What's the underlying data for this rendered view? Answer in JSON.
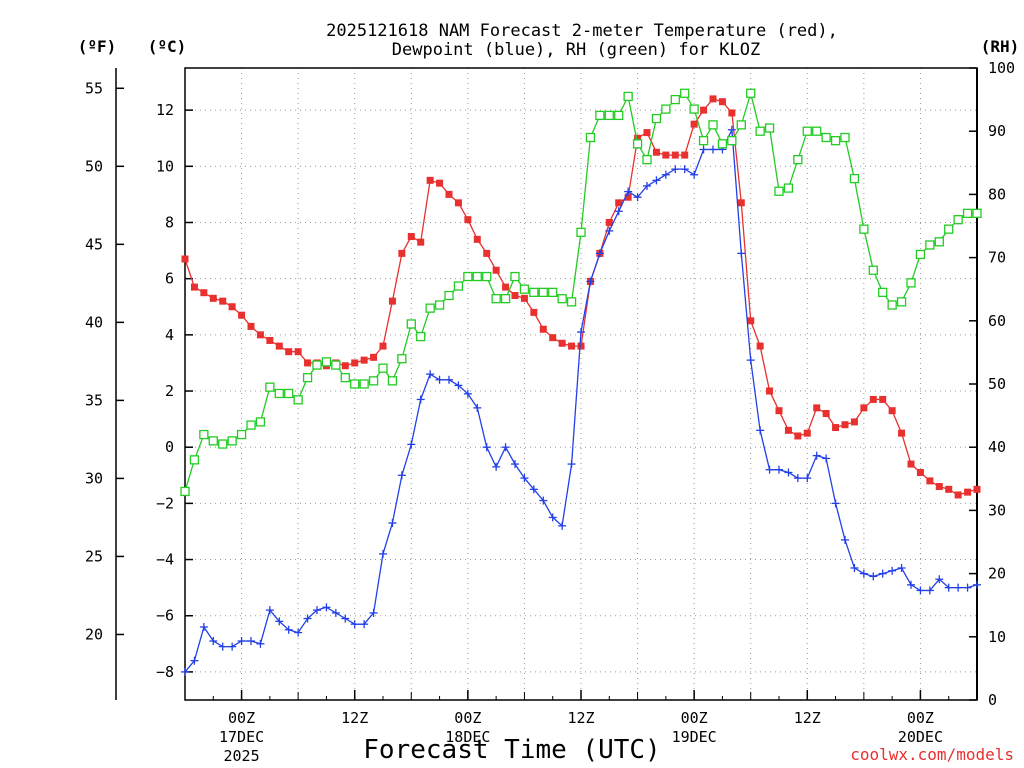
{
  "chart_data": {
    "type": "line",
    "title": "2025121618 NAM Forecast 2-meter Temperature (red),",
    "title_line2": "Dewpoint (blue), RH (green) for KLOZ",
    "xlabel": "Forecast Time (UTC)",
    "credit": "coolwx.com/models",
    "units": {
      "fahrenheit": "(ºF)",
      "celsius": "(ºC)",
      "rh": "(RH)"
    },
    "x_units": "hours since 2025-12-16 18Z",
    "xlim": [
      0,
      84
    ],
    "ylim_celsius": [
      -9,
      13.5
    ],
    "ylim_rh": [
      0,
      100
    ],
    "celsius_ticks": [
      -8,
      -6,
      -4,
      -2,
      0,
      2,
      4,
      6,
      8,
      10,
      12
    ],
    "celsius_tick_labels": [
      "−8",
      "−6",
      "−4",
      "−2",
      "0",
      "2",
      "4",
      "6",
      "8",
      "10",
      "12"
    ],
    "fahrenheit_ticks": [
      20,
      25,
      30,
      35,
      40,
      45,
      50,
      55
    ],
    "fahrenheit_tick_labels": [
      "20",
      "25",
      "30",
      "35",
      "40",
      "45",
      "50",
      "55"
    ],
    "rh_ticks": [
      0,
      10,
      20,
      30,
      40,
      50,
      60,
      70,
      80,
      90,
      100
    ],
    "rh_tick_labels": [
      "0",
      "10",
      "20",
      "30",
      "40",
      "50",
      "60",
      "70",
      "80",
      "90",
      "100"
    ],
    "x_ticks": [
      {
        "hour": 6,
        "label": "00Z",
        "sub1": "17DEC",
        "sub2": "2025"
      },
      {
        "hour": 18,
        "label": "12Z",
        "sub1": "",
        "sub2": ""
      },
      {
        "hour": 30,
        "label": "00Z",
        "sub1": "18DEC",
        "sub2": ""
      },
      {
        "hour": 42,
        "label": "12Z",
        "sub1": "",
        "sub2": ""
      },
      {
        "hour": 54,
        "label": "00Z",
        "sub1": "19DEC",
        "sub2": ""
      },
      {
        "hour": 66,
        "label": "12Z",
        "sub1": "",
        "sub2": ""
      },
      {
        "hour": 78,
        "label": "00Z",
        "sub1": "20DEC",
        "sub2": ""
      }
    ],
    "series": [
      {
        "name": "Temperature",
        "color": "#e8302f",
        "marker": "filled-square",
        "axis": "celsius",
        "points": [
          [
            0,
            6.7
          ],
          [
            1,
            5.7
          ],
          [
            2,
            5.5
          ],
          [
            3,
            5.3
          ],
          [
            4,
            5.2
          ],
          [
            5,
            5.0
          ],
          [
            6,
            4.7
          ],
          [
            7,
            4.3
          ],
          [
            8,
            4.0
          ],
          [
            9,
            3.8
          ],
          [
            10,
            3.6
          ],
          [
            11,
            3.4
          ],
          [
            12,
            3.4
          ],
          [
            13,
            3.0
          ],
          [
            14,
            3.0
          ],
          [
            15,
            2.9
          ],
          [
            16,
            3.0
          ],
          [
            17,
            2.9
          ],
          [
            18,
            3.0
          ],
          [
            19,
            3.1
          ],
          [
            20,
            3.2
          ],
          [
            21,
            3.6
          ],
          [
            22,
            5.2
          ],
          [
            23,
            6.9
          ],
          [
            24,
            7.5
          ],
          [
            25,
            7.3
          ],
          [
            26,
            9.5
          ],
          [
            27,
            9.4
          ],
          [
            28,
            9.0
          ],
          [
            29,
            8.7
          ],
          [
            30,
            8.1
          ],
          [
            31,
            7.4
          ],
          [
            32,
            6.9
          ],
          [
            33,
            6.3
          ],
          [
            34,
            5.7
          ],
          [
            35,
            5.4
          ],
          [
            36,
            5.3
          ],
          [
            37,
            4.8
          ],
          [
            38,
            4.2
          ],
          [
            39,
            3.9
          ],
          [
            40,
            3.7
          ],
          [
            41,
            3.6
          ],
          [
            42,
            3.6
          ],
          [
            43,
            5.9
          ],
          [
            44,
            6.9
          ],
          [
            45,
            8.0
          ],
          [
            46,
            8.7
          ],
          [
            47,
            8.9
          ],
          [
            48,
            11.0
          ],
          [
            49,
            11.2
          ],
          [
            50,
            10.5
          ],
          [
            51,
            10.4
          ],
          [
            52,
            10.4
          ],
          [
            53,
            10.4
          ],
          [
            54,
            11.5
          ],
          [
            55,
            12.0
          ],
          [
            56,
            12.4
          ],
          [
            57,
            12.3
          ],
          [
            58,
            11.9
          ],
          [
            59,
            8.7
          ],
          [
            60,
            4.5
          ],
          [
            61,
            3.6
          ],
          [
            62,
            2.0
          ],
          [
            63,
            1.3
          ],
          [
            64,
            0.6
          ],
          [
            65,
            0.4
          ],
          [
            66,
            0.5
          ],
          [
            67,
            1.4
          ],
          [
            68,
            1.2
          ],
          [
            69,
            0.7
          ],
          [
            70,
            0.8
          ],
          [
            71,
            0.9
          ],
          [
            72,
            1.4
          ],
          [
            73,
            1.7
          ],
          [
            74,
            1.7
          ],
          [
            75,
            1.3
          ],
          [
            76,
            0.5
          ],
          [
            77,
            -0.6
          ],
          [
            78,
            -0.9
          ],
          [
            79,
            -1.2
          ],
          [
            80,
            -1.4
          ],
          [
            81,
            -1.5
          ],
          [
            82,
            -1.7
          ],
          [
            83,
            -1.6
          ],
          [
            84,
            -1.5
          ]
        ]
      },
      {
        "name": "Dewpoint",
        "color": "#2340e8",
        "marker": "plus",
        "axis": "celsius",
        "points": [
          [
            0,
            -8.0
          ],
          [
            1,
            -7.6
          ],
          [
            2,
            -6.4
          ],
          [
            3,
            -6.9
          ],
          [
            4,
            -7.1
          ],
          [
            5,
            -7.1
          ],
          [
            6,
            -6.9
          ],
          [
            7,
            -6.9
          ],
          [
            8,
            -7.0
          ],
          [
            9,
            -5.8
          ],
          [
            10,
            -6.2
          ],
          [
            11,
            -6.5
          ],
          [
            12,
            -6.6
          ],
          [
            13,
            -6.1
          ],
          [
            14,
            -5.8
          ],
          [
            15,
            -5.7
          ],
          [
            16,
            -5.9
          ],
          [
            17,
            -6.1
          ],
          [
            18,
            -6.3
          ],
          [
            19,
            -6.3
          ],
          [
            20,
            -5.9
          ],
          [
            21,
            -3.8
          ],
          [
            22,
            -2.7
          ],
          [
            23,
            -1.0
          ],
          [
            24,
            0.1
          ],
          [
            25,
            1.7
          ],
          [
            26,
            2.6
          ],
          [
            27,
            2.4
          ],
          [
            28,
            2.4
          ],
          [
            29,
            2.2
          ],
          [
            30,
            1.9
          ],
          [
            31,
            1.4
          ],
          [
            32,
            0.0
          ],
          [
            33,
            -0.7
          ],
          [
            34,
            0.0
          ],
          [
            35,
            -0.6
          ],
          [
            36,
            -1.1
          ],
          [
            37,
            -1.5
          ],
          [
            38,
            -1.9
          ],
          [
            39,
            -2.5
          ],
          [
            40,
            -2.8
          ],
          [
            41,
            -0.6
          ],
          [
            42,
            4.1
          ],
          [
            43,
            5.9
          ],
          [
            44,
            6.9
          ],
          [
            45,
            7.7
          ],
          [
            46,
            8.4
          ],
          [
            47,
            9.1
          ],
          [
            48,
            8.9
          ],
          [
            49,
            9.3
          ],
          [
            50,
            9.5
          ],
          [
            51,
            9.7
          ],
          [
            52,
            9.9
          ],
          [
            53,
            9.9
          ],
          [
            54,
            9.7
          ],
          [
            55,
            10.6
          ],
          [
            56,
            10.6
          ],
          [
            57,
            10.6
          ],
          [
            58,
            11.3
          ],
          [
            59,
            6.9
          ],
          [
            60,
            3.1
          ],
          [
            61,
            0.6
          ],
          [
            62,
            -0.8
          ],
          [
            63,
            -0.8
          ],
          [
            64,
            -0.9
          ],
          [
            65,
            -1.1
          ],
          [
            66,
            -1.1
          ],
          [
            67,
            -0.3
          ],
          [
            68,
            -0.4
          ],
          [
            69,
            -2.0
          ],
          [
            70,
            -3.3
          ],
          [
            71,
            -4.3
          ],
          [
            72,
            -4.5
          ],
          [
            73,
            -4.6
          ],
          [
            74,
            -4.5
          ],
          [
            75,
            -4.4
          ],
          [
            76,
            -4.3
          ],
          [
            77,
            -4.9
          ],
          [
            78,
            -5.1
          ],
          [
            79,
            -5.1
          ],
          [
            80,
            -4.7
          ],
          [
            81,
            -5.0
          ],
          [
            82,
            -5.0
          ],
          [
            83,
            -5.0
          ],
          [
            84,
            -4.9
          ]
        ]
      },
      {
        "name": "RH",
        "color": "#22cc22",
        "marker": "open-square",
        "axis": "rh",
        "points": [
          [
            0,
            33
          ],
          [
            1,
            38
          ],
          [
            2,
            42
          ],
          [
            3,
            41
          ],
          [
            4,
            40.5
          ],
          [
            5,
            41
          ],
          [
            6,
            42
          ],
          [
            7,
            43.5
          ],
          [
            8,
            44
          ],
          [
            9,
            49.5
          ],
          [
            10,
            48.5
          ],
          [
            11,
            48.5
          ],
          [
            12,
            47.5
          ],
          [
            13,
            51
          ],
          [
            14,
            53
          ],
          [
            15,
            53.5
          ],
          [
            16,
            53
          ],
          [
            17,
            51
          ],
          [
            18,
            50
          ],
          [
            19,
            50
          ],
          [
            20,
            50.5
          ],
          [
            21,
            52.5
          ],
          [
            22,
            50.5
          ],
          [
            23,
            54
          ],
          [
            24,
            59.5
          ],
          [
            25,
            57.5
          ],
          [
            26,
            62
          ],
          [
            27,
            62.5
          ],
          [
            28,
            64
          ],
          [
            29,
            65.5
          ],
          [
            30,
            67
          ],
          [
            31,
            67
          ],
          [
            32,
            67
          ],
          [
            33,
            63.5
          ],
          [
            34,
            63.5
          ],
          [
            35,
            67
          ],
          [
            36,
            65
          ],
          [
            37,
            64.5
          ],
          [
            38,
            64.5
          ],
          [
            39,
            64.5
          ],
          [
            40,
            63.5
          ],
          [
            41,
            63
          ],
          [
            42,
            74
          ],
          [
            43,
            89
          ],
          [
            44,
            92.5
          ],
          [
            45,
            92.5
          ],
          [
            46,
            92.5
          ],
          [
            47,
            95.5
          ],
          [
            48,
            88
          ],
          [
            49,
            85.5
          ],
          [
            50,
            92
          ],
          [
            51,
            93.5
          ],
          [
            52,
            95
          ],
          [
            53,
            96
          ],
          [
            54,
            93.5
          ],
          [
            55,
            88.5
          ],
          [
            56,
            91
          ],
          [
            57,
            88
          ],
          [
            58,
            88.5
          ],
          [
            59,
            91
          ],
          [
            60,
            96
          ],
          [
            61,
            90
          ],
          [
            62,
            90.5
          ],
          [
            63,
            80.5
          ],
          [
            64,
            81
          ],
          [
            65,
            85.5
          ],
          [
            66,
            90
          ],
          [
            67,
            90
          ],
          [
            68,
            89
          ],
          [
            69,
            88.5
          ],
          [
            70,
            89
          ],
          [
            71,
            82.5
          ],
          [
            72,
            74.5
          ],
          [
            73,
            68
          ],
          [
            74,
            64.5
          ],
          [
            75,
            62.5
          ],
          [
            76,
            63
          ],
          [
            77,
            66
          ],
          [
            78,
            70.5
          ],
          [
            79,
            72
          ],
          [
            80,
            72.5
          ],
          [
            81,
            74.5
          ],
          [
            82,
            76
          ],
          [
            83,
            77
          ],
          [
            84,
            77
          ]
        ]
      }
    ]
  }
}
